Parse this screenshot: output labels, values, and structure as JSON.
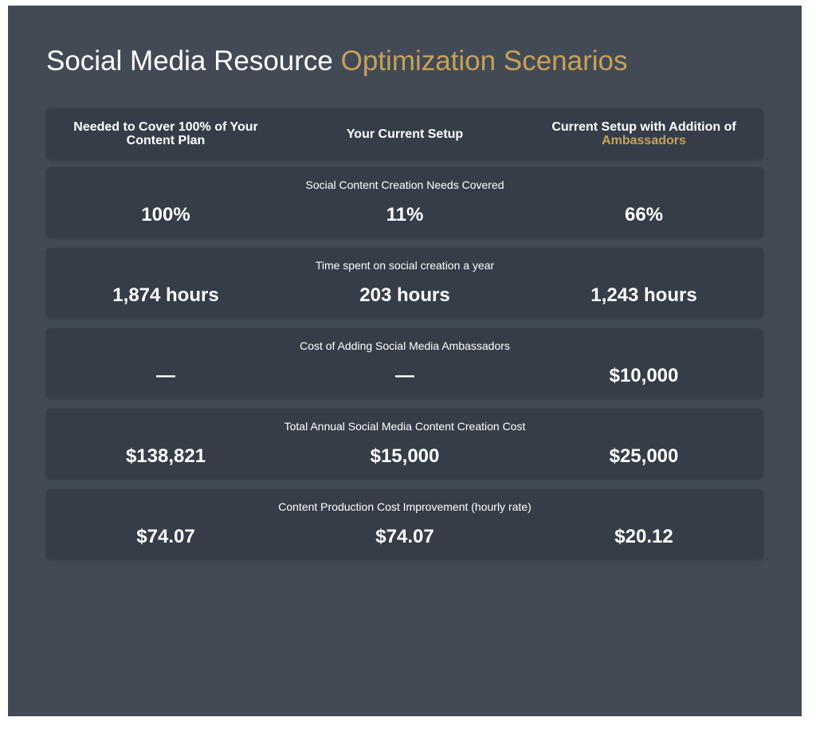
{
  "title": {
    "main": "Social Media Resource ",
    "accent": "Optimization Scenarios"
  },
  "columns": {
    "col1": "Needed to Cover 100% of Your Content Plan",
    "col2": "Your Current Setup",
    "col3_main": "Current Setup with Addition of",
    "col3_accent": "Ambassadors"
  },
  "rows": [
    {
      "label": "Social Content Creation Needs Covered",
      "values": [
        "100%",
        "11%",
        "66%"
      ]
    },
    {
      "label": "Time spent on social creation a year",
      "values": [
        "1,874 hours",
        "203 hours",
        "1,243 hours"
      ]
    },
    {
      "label": "Cost of Adding Social Media Ambassadors",
      "values": [
        "—",
        "—",
        "$10,000"
      ]
    },
    {
      "label": "Total Annual Social Media Content Creation Cost",
      "values": [
        "$138,821",
        "$15,000",
        "$25,000"
      ]
    },
    {
      "label": "Content Production Cost Improvement (hourly rate)",
      "values": [
        "$74.07",
        "$74.07",
        "$20.12"
      ]
    }
  ],
  "colors": {
    "background": "#424b55",
    "card": "#353e48",
    "accent": "#c9a05a",
    "text": "#ffffff"
  }
}
